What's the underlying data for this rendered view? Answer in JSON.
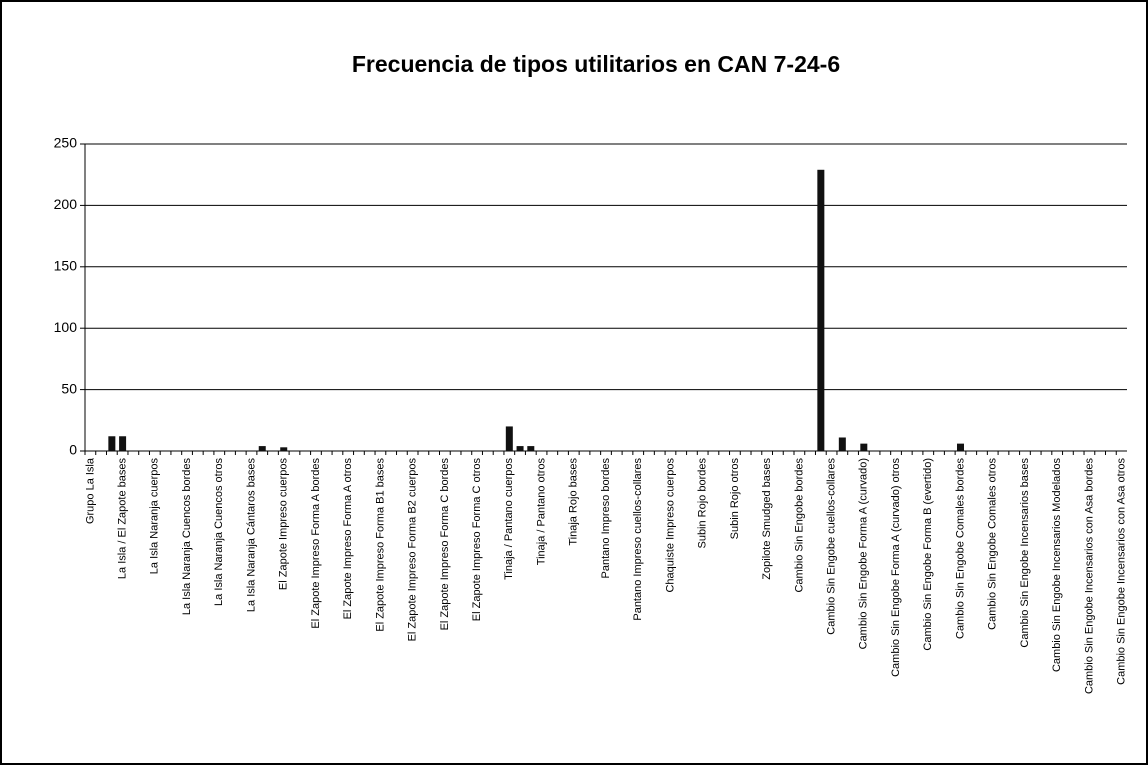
{
  "chart_data": {
    "type": "bar",
    "title": "Frecuencia de tipos utilitarios en CAN 7-24-6",
    "categories": [
      "Grupo La Isla",
      null,
      null,
      "La Isla / El Zapote bases",
      null,
      null,
      "La Isla Naranja cuerpos",
      null,
      null,
      "La Isla Naranja Cuencos bordes",
      null,
      null,
      "La Isla Naranja Cuencos otros",
      null,
      null,
      "La Isla Naranja Cántaros bases",
      null,
      null,
      "El Zapote Impreso cuerpos",
      null,
      null,
      "El Zapote Impreso Forma A bordes",
      null,
      null,
      "El Zapote Impreso Forma A otros",
      null,
      null,
      "El Zapote Impreso Forma B1 bases",
      null,
      null,
      "El Zapote Impreso Forma B2 cuerpos",
      null,
      null,
      "El Zapote Impreso Forma C bordes",
      null,
      null,
      "El Zapote Impreso Forma C otros",
      null,
      null,
      "Tinaja / Pantano cuerpos",
      null,
      null,
      "Tinaja / Pantano otros",
      null,
      null,
      "Tinaja Rojo bases",
      null,
      null,
      "Pantano Impreso bordes",
      null,
      null,
      "Pantano Impreso cuellos-collares",
      null,
      null,
      "Chaquiste Impreso cuerpos",
      null,
      null,
      "Subin Rojo bordes",
      null,
      null,
      "Subin Rojo otros",
      null,
      null,
      "Zopilote Smudged bases",
      null,
      null,
      "Cambio Sin Engobe bordes",
      null,
      null,
      "Cambio Sin Engobe cuellos-collares",
      null,
      null,
      "Cambio Sin Engobe Forma A (curvado)",
      null,
      null,
      "Cambio Sin Engobe Forma A (curvado) otros",
      null,
      null,
      "Cambio Sin Engobe Forma B (evertido)",
      null,
      null,
      "Cambio Sin Engobe Comales bordes",
      null,
      null,
      "Cambio Sin Engobe Comales otros",
      null,
      null,
      "Cambio Sin Engobe Incensarios bases",
      null,
      null,
      "Cambio Sin Engobe Incensarios Modelados",
      null,
      null,
      "Cambio Sin Engobe Incensarios con Asa bordes",
      null,
      null,
      "Cambio Sin Engobe Incensarios con Asa otros"
    ],
    "values": [
      0,
      0,
      12,
      12,
      0,
      0,
      0,
      0,
      0,
      0,
      0,
      0,
      0,
      0,
      0,
      0,
      4,
      0,
      3,
      0,
      0,
      0,
      0,
      0,
      0,
      0,
      0,
      0,
      0,
      0,
      0,
      0,
      0,
      0,
      0,
      0,
      0,
      0,
      0,
      20,
      4,
      4,
      0,
      0,
      0,
      0,
      0,
      0,
      0,
      0,
      0,
      0,
      0,
      0,
      0,
      0,
      0,
      0,
      0,
      0,
      0,
      0,
      0,
      0,
      0,
      0,
      0,
      0,
      229,
      0,
      11,
      0,
      6,
      0,
      0,
      0,
      0,
      0,
      0,
      0,
      0,
      6,
      0,
      0,
      0,
      0,
      0,
      0,
      0,
      0,
      0,
      0,
      0,
      0,
      0,
      0,
      0
    ],
    "color": "#111111",
    "ylim": [
      0,
      250
    ],
    "yticks": [
      0,
      50,
      100,
      150,
      200,
      250
    ],
    "grid": true
  }
}
